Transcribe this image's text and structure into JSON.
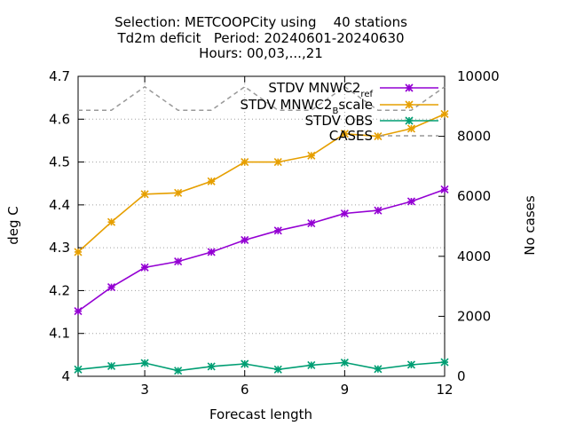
{
  "chart_data": {
    "type": "line",
    "title_lines": [
      "Selection: METCOOPCity using    40 stations",
      "Td2m deficit   Period: 20240601-20240630",
      "Hours: 00,03,...,21"
    ],
    "xlabel": "Forecast length",
    "ylabel": "deg C",
    "y2label": "No cases",
    "xlim": [
      1,
      12
    ],
    "ylim": [
      4.0,
      4.7
    ],
    "y2lim": [
      0,
      10000
    ],
    "xticks": [
      3,
      6,
      9,
      12
    ],
    "yticks": [
      4,
      4.1,
      4.2,
      4.3,
      4.4,
      4.5,
      4.6,
      4.7
    ],
    "y2ticks": [
      0,
      2000,
      4000,
      6000,
      8000,
      10000
    ],
    "grid": true,
    "legend_position": "top-right",
    "x": [
      1,
      2,
      3,
      4,
      5,
      6,
      7,
      8,
      9,
      10,
      11,
      12
    ],
    "series": [
      {
        "name": "STDV MNWC2_ref",
        "legend_base": "STDV MNWC2",
        "legend_sub": "ref",
        "color": "#9400d3",
        "axis": "y1",
        "style": "solid",
        "values": [
          4.152,
          4.208,
          4.254,
          4.268,
          4.29,
          4.318,
          4.34,
          4.357,
          4.38,
          4.387,
          4.408,
          4.436
        ]
      },
      {
        "name": "STDV MNWC2_Bscale",
        "legend_base": "STDV MNWC2",
        "legend_sub": "B",
        "legend_tail": "scale",
        "color": "#e69f00",
        "axis": "y1",
        "style": "solid",
        "values": [
          4.29,
          4.36,
          4.425,
          4.428,
          4.455,
          4.5,
          4.5,
          4.515,
          4.566,
          4.56,
          4.578,
          4.612
        ]
      },
      {
        "name": "STDV OBS",
        "legend_base": "STDV OBS",
        "color": "#009e73",
        "axis": "y1",
        "style": "solid",
        "values": [
          4.016,
          4.024,
          4.031,
          4.013,
          4.023,
          4.029,
          4.016,
          4.026,
          4.032,
          4.017,
          4.027,
          4.033
        ]
      },
      {
        "name": "CASES",
        "legend_base": "CASES",
        "color": "#999999",
        "axis": "y2",
        "style": "dashed",
        "values": [
          8870,
          8870,
          9650,
          8870,
          8870,
          9650,
          8870,
          8870,
          9650,
          8870,
          8870,
          9650
        ]
      }
    ]
  }
}
